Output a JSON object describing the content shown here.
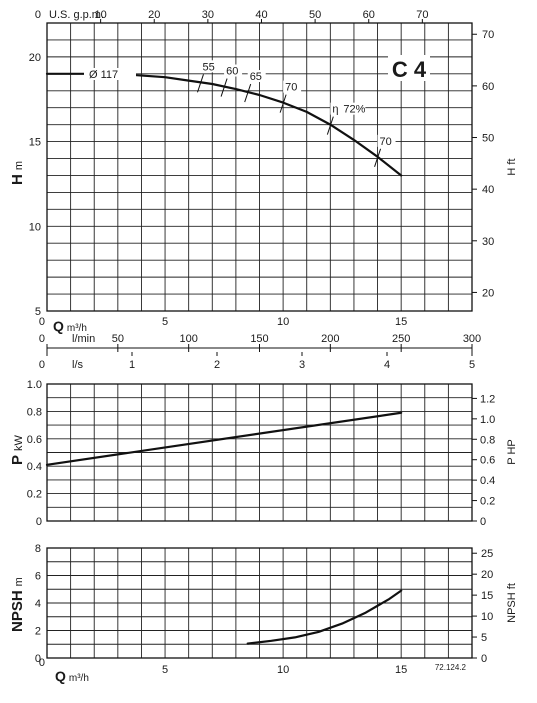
{
  "chart_data": [
    {
      "type": "line",
      "panel": "head",
      "model_label": "C 4",
      "impeller_label": "Ø  117",
      "xlabel": "Q m³/h",
      "ylabel": "H m",
      "ylabel_right": "H ft",
      "top_axis_label": "U.S. g.p.m.",
      "lmin_label": "l/min",
      "ls_label": "l/s",
      "xlim": [
        0,
        18
      ],
      "ylim": [
        5,
        22
      ],
      "x_ticks": [
        0,
        5,
        10,
        15
      ],
      "x_tick_labels": [
        "0",
        "5",
        "10",
        "15"
      ],
      "y_ticks": [
        5,
        10,
        15,
        20
      ],
      "y_right_ticks_ft": [
        20,
        30,
        40,
        50,
        60,
        70
      ],
      "gpm_ticks": [
        0,
        10,
        20,
        30,
        40,
        50,
        60,
        70
      ],
      "gpm_tick_labels": [
        "0",
        "10",
        "20",
        "30",
        "40",
        "50",
        "60",
        "70"
      ],
      "lmin_ticks": [
        0,
        50,
        100,
        150,
        200,
        250,
        300
      ],
      "lmin_tick_labels": [
        "0",
        "50",
        "100",
        "150",
        "200",
        "250",
        "300"
      ],
      "ls_ticks": [
        0,
        1,
        2,
        3,
        4,
        5
      ],
      "ls_tick_labels": [
        "0",
        "1",
        "2",
        "3",
        "4",
        "5"
      ],
      "series": [
        {
          "x": [
            0,
            2,
            3.5,
            5,
            6,
            7,
            8,
            9,
            10,
            11,
            12,
            13,
            14,
            15
          ],
          "values": [
            19.0,
            19.0,
            18.95,
            18.8,
            18.6,
            18.4,
            18.1,
            17.75,
            17.3,
            16.75,
            16.0,
            15.1,
            14.1,
            13.0
          ]
        }
      ],
      "efficiency_label_prefix": "η",
      "efficiency_marks": [
        {
          "label": "55",
          "x": 6.5
        },
        {
          "label": "60",
          "x": 7.5
        },
        {
          "label": "65",
          "x": 8.5
        },
        {
          "label": "70",
          "x": 10.0
        },
        {
          "label": "72%",
          "x": 12.0
        },
        {
          "label": "70",
          "x": 14.0
        }
      ]
    },
    {
      "type": "line",
      "panel": "power",
      "ylabel": "P kW",
      "ylabel_right": "P HP",
      "xlim": [
        0,
        18
      ],
      "ylim": [
        0,
        1.0
      ],
      "y_ticks": [
        0,
        0.2,
        0.4,
        0.6,
        0.8,
        1.0
      ],
      "y_tick_labels": [
        "0",
        "0.2",
        "0.4",
        "0.6",
        "0.8",
        "1.0"
      ],
      "y_right_ticks_hp": [
        0,
        0.2,
        0.4,
        0.6,
        0.8,
        1.0,
        1.2
      ],
      "y_right_tick_labels": [
        "0",
        "0.2",
        "0.4",
        "0.6",
        "0.8",
        "1.0",
        "1.2"
      ],
      "series": [
        {
          "x": [
            0,
            15
          ],
          "values": [
            0.41,
            0.79
          ]
        }
      ]
    },
    {
      "type": "line",
      "panel": "npsh",
      "xlabel": "Q m³/h",
      "ylabel": "NPSH m",
      "ylabel_right": "NPSH ft",
      "xlim": [
        0,
        18
      ],
      "ylim": [
        0,
        8
      ],
      "x_ticks": [
        0,
        5,
        10,
        15
      ],
      "x_tick_labels": [
        "0",
        "5",
        "10",
        "15"
      ],
      "y_ticks": [
        0,
        2,
        4,
        6,
        8
      ],
      "y_tick_labels": [
        "0",
        "2",
        "4",
        "6",
        "8"
      ],
      "y_right_ticks_ft": [
        0,
        5,
        10,
        15,
        20,
        25
      ],
      "y_right_tick_labels": [
        "0",
        "5",
        "10",
        "15",
        "20",
        "25"
      ],
      "series": [
        {
          "x": [
            8.5,
            9.5,
            10.5,
            11.5,
            12.5,
            13.5,
            14.5,
            15
          ],
          "values": [
            1.05,
            1.25,
            1.5,
            1.9,
            2.5,
            3.3,
            4.3,
            4.9
          ]
        }
      ],
      "footnote": "72.124.2"
    }
  ]
}
